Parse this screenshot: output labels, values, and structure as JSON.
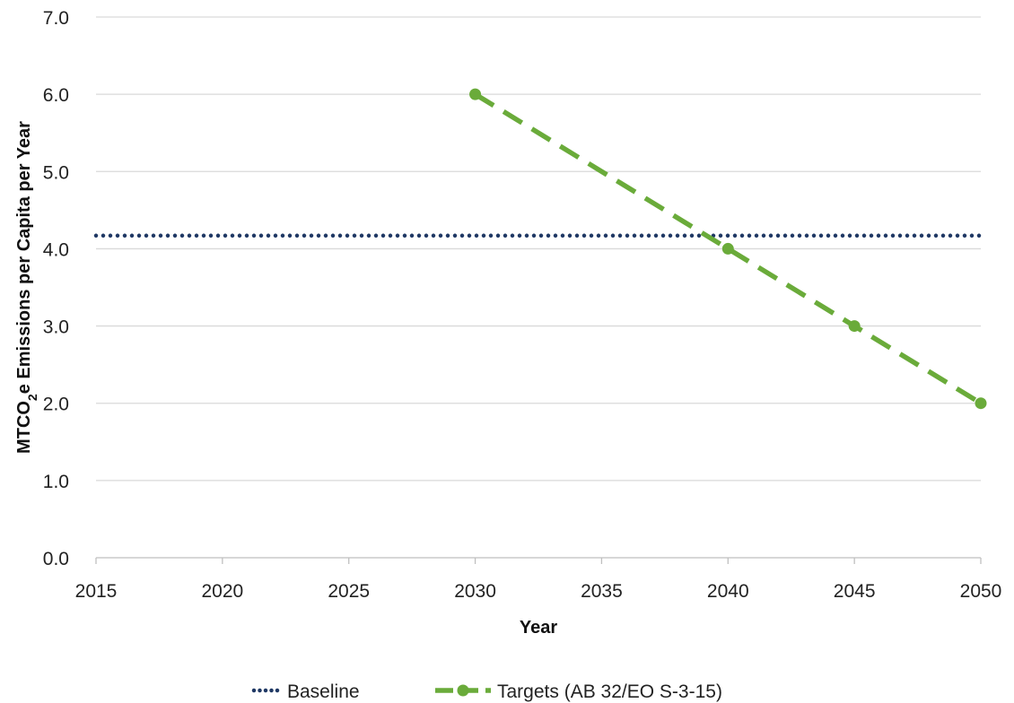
{
  "chart_data": {
    "type": "line",
    "xlabel": "Year",
    "ylabel_parts": [
      "MTCO",
      "2",
      "e Emissions per Capita per Year"
    ],
    "xlim": [
      2015,
      2050
    ],
    "ylim": [
      0,
      7
    ],
    "x_ticks": [
      "2015",
      "2020",
      "2025",
      "2030",
      "2035",
      "2040",
      "2045",
      "2050"
    ],
    "y_ticks": [
      "0.0",
      "1.0",
      "2.0",
      "3.0",
      "4.0",
      "5.0",
      "6.0",
      "7.0"
    ],
    "grid": true,
    "legend": "bottom",
    "series": [
      {
        "name": "Baseline",
        "style": "dotted",
        "color": "#1f3864",
        "points": [
          {
            "x": 2015,
            "y": 4.17
          },
          {
            "x": 2050,
            "y": 4.17
          }
        ]
      },
      {
        "name": "Targets (AB 32/EO S-3-15)",
        "style": "dashed",
        "color": "#6aab3a",
        "markers": true,
        "points": [
          {
            "x": 2030,
            "y": 6.0
          },
          {
            "x": 2040,
            "y": 4.0
          },
          {
            "x": 2045,
            "y": 3.0
          },
          {
            "x": 2050,
            "y": 2.0
          }
        ]
      }
    ]
  }
}
